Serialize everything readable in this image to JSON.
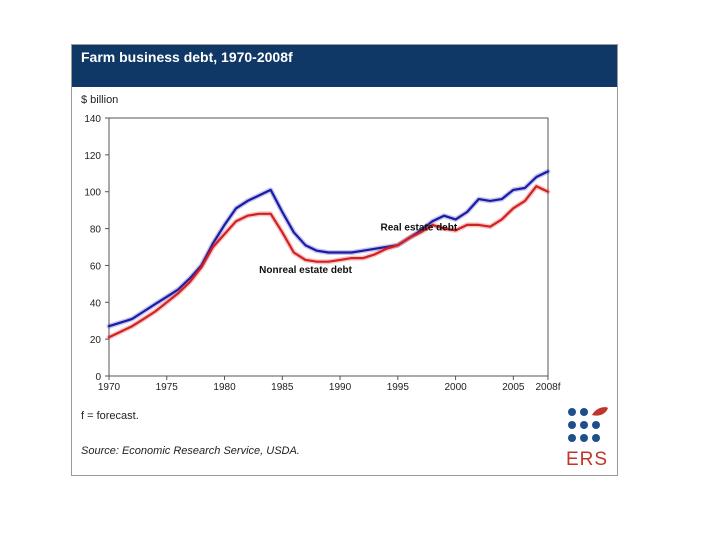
{
  "header": {
    "title": "Farm business debt, 1970-2008f"
  },
  "footnote": "f = forecast.",
  "source": "Source: Economic Research Service, USDA.",
  "logo": {
    "text": "ERS"
  },
  "colors": {
    "header_bg": "#0f3867",
    "real_estate": "#1a1aa8",
    "nonreal_estate": "#d42020"
  },
  "chart_data": {
    "type": "line",
    "title": "Farm business debt, 1970-2008f",
    "ylabel": "$ billion",
    "xlabel": "",
    "xlim": [
      1970,
      2008
    ],
    "ylim": [
      0,
      140
    ],
    "yticks": [
      0,
      20,
      40,
      60,
      80,
      100,
      120,
      140
    ],
    "xticks": [
      {
        "value": 1970,
        "label": "1970"
      },
      {
        "value": 1975,
        "label": "1975"
      },
      {
        "value": 1980,
        "label": "1980"
      },
      {
        "value": 1985,
        "label": "1985"
      },
      {
        "value": 1990,
        "label": "1990"
      },
      {
        "value": 1995,
        "label": "1995"
      },
      {
        "value": 2000,
        "label": "2000"
      },
      {
        "value": 2005,
        "label": "2005"
      },
      {
        "value": 2008,
        "label": "2008f"
      }
    ],
    "grid": false,
    "x": [
      1970,
      1971,
      1972,
      1973,
      1974,
      1975,
      1976,
      1977,
      1978,
      1979,
      1980,
      1981,
      1982,
      1983,
      1984,
      1985,
      1986,
      1987,
      1988,
      1989,
      1990,
      1991,
      1992,
      1993,
      1994,
      1995,
      1996,
      1997,
      1998,
      1999,
      2000,
      2001,
      2002,
      2003,
      2004,
      2005,
      2006,
      2007,
      2008
    ],
    "series": [
      {
        "name": "Real estate debt",
        "color": "#1a1aa8",
        "values": [
          27,
          29,
          31,
          35,
          39,
          43,
          47,
          53,
          60,
          72,
          82,
          91,
          95,
          98,
          101,
          89,
          78,
          71,
          68,
          67,
          67,
          67,
          68,
          69,
          70,
          71,
          75,
          79,
          84,
          87,
          85,
          89,
          96,
          95,
          96,
          101,
          102,
          108,
          111
        ]
      },
      {
        "name": "Nonreal estate debt",
        "color": "#d42020",
        "values": [
          21,
          24,
          27,
          31,
          35,
          40,
          45,
          51,
          59,
          70,
          77,
          84,
          87,
          88,
          88,
          78,
          67,
          63,
          62,
          62,
          63,
          64,
          64,
          66,
          69,
          71,
          75,
          78,
          82,
          80,
          79,
          82,
          82,
          81,
          85,
          91,
          95,
          103,
          100
        ]
      }
    ],
    "annotations": [
      {
        "text": "Real estate debt",
        "x": 1993.5,
        "y": 79
      },
      {
        "text": "Nonreal estate debt",
        "x": 1983,
        "y": 56
      }
    ]
  }
}
